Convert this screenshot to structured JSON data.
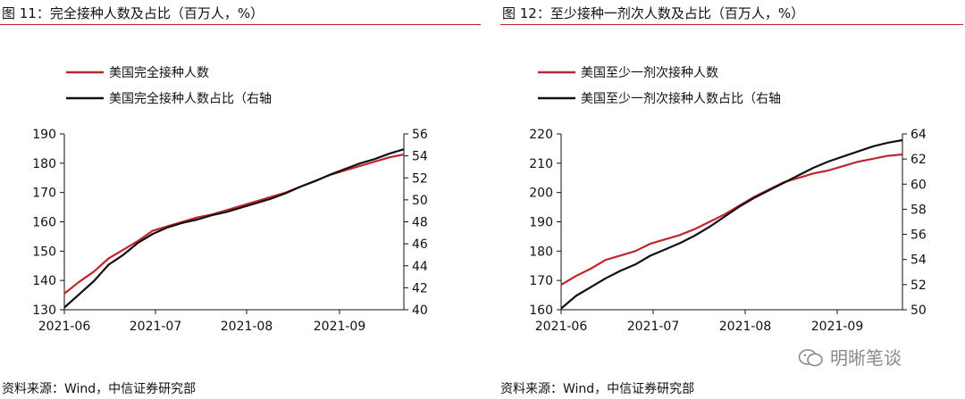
{
  "chart_data": [
    {
      "type": "line",
      "title": "图 11：完全接种人数及占比（百万人，%）",
      "source": "资料来源：Wind，中信证券研究部",
      "x_tick_labels": [
        "2021-06",
        "2021-07",
        "2021-08",
        "2021-09"
      ],
      "x_range": [
        "2021-06-01",
        "2021-09-26"
      ],
      "y_left": {
        "range": [
          130,
          190
        ],
        "ticks": [
          130,
          140,
          150,
          160,
          170,
          180,
          190
        ]
      },
      "y_right": {
        "range": [
          40,
          56
        ],
        "ticks": [
          40,
          42,
          44,
          46,
          48,
          50,
          52,
          54,
          56
        ]
      },
      "legend": [
        "美国完全接种人数",
        "美国完全接种人数占比（右轴"
      ],
      "series": [
        {
          "name": "美国完全接种人数",
          "axis": "left",
          "color": "#c0262d",
          "x": [
            0,
            5,
            10,
            15,
            20,
            25,
            30,
            35,
            40,
            45,
            50,
            55,
            60,
            65,
            70,
            75,
            80,
            85,
            90,
            95,
            100,
            105,
            110,
            115
          ],
          "values": [
            135.5,
            139.5,
            143,
            147.5,
            150.5,
            153.5,
            157,
            158.5,
            160,
            161.5,
            162.5,
            164,
            165.5,
            167,
            168.5,
            170,
            172,
            174,
            176,
            177.5,
            179,
            180.5,
            182,
            183
          ]
        },
        {
          "name": "美国完全接种人数占比（右轴",
          "axis": "right",
          "color": "#111111",
          "x": [
            0,
            5,
            10,
            15,
            20,
            25,
            30,
            35,
            40,
            45,
            50,
            55,
            60,
            65,
            70,
            75,
            80,
            85,
            90,
            95,
            100,
            105,
            110,
            115
          ],
          "values": [
            40.2,
            41.4,
            42.6,
            44.1,
            45.0,
            46.1,
            46.9,
            47.5,
            47.9,
            48.2,
            48.6,
            48.9,
            49.3,
            49.7,
            50.1,
            50.6,
            51.2,
            51.7,
            52.3,
            52.8,
            53.3,
            53.7,
            54.2,
            54.6
          ]
        }
      ]
    },
    {
      "type": "line",
      "title": "图 12：至少接种一剂次人数及占比（百万人，%）",
      "source": "资料来源：Wind，中信证券研究部",
      "x_tick_labels": [
        "2021-06",
        "2021-07",
        "2021-08",
        "2021-09"
      ],
      "x_range": [
        "2021-06-01",
        "2021-09-26"
      ],
      "y_left": {
        "range": [
          160,
          220
        ],
        "ticks": [
          160,
          170,
          180,
          190,
          200,
          210,
          220
        ]
      },
      "y_right": {
        "range": [
          50,
          64
        ],
        "ticks": [
          50,
          52,
          54,
          56,
          58,
          60,
          62,
          64
        ]
      },
      "legend": [
        "美国至少一剂次接种人数",
        "美国至少一剂次接种人数占比（右轴"
      ],
      "series": [
        {
          "name": "美国至少一剂次接种人数",
          "axis": "left",
          "color": "#c0262d",
          "x": [
            0,
            5,
            10,
            15,
            20,
            25,
            30,
            35,
            40,
            45,
            50,
            55,
            60,
            65,
            70,
            75,
            80,
            85,
            90,
            95,
            100,
            105,
            110,
            115
          ],
          "values": [
            168.5,
            171.5,
            174,
            177,
            178.5,
            180,
            182.5,
            184,
            185.5,
            187.5,
            190,
            192.5,
            195.5,
            198.5,
            201,
            203.5,
            205,
            206.5,
            207.5,
            209,
            210.5,
            211.5,
            212.5,
            213
          ]
        },
        {
          "name": "美国至少一剂次接种人数占比（右轴",
          "axis": "right",
          "color": "#111111",
          "x": [
            0,
            5,
            10,
            15,
            20,
            25,
            30,
            35,
            40,
            45,
            50,
            55,
            60,
            65,
            70,
            75,
            80,
            85,
            90,
            95,
            100,
            105,
            110,
            115
          ],
          "values": [
            50.1,
            51.1,
            51.8,
            52.5,
            53.1,
            53.6,
            54.3,
            54.8,
            55.3,
            55.9,
            56.6,
            57.4,
            58.2,
            58.9,
            59.5,
            60.1,
            60.7,
            61.3,
            61.8,
            62.2,
            62.6,
            63.0,
            63.3,
            63.5
          ]
        }
      ]
    }
  ],
  "watermark": {
    "text": "明晰笔谈"
  }
}
